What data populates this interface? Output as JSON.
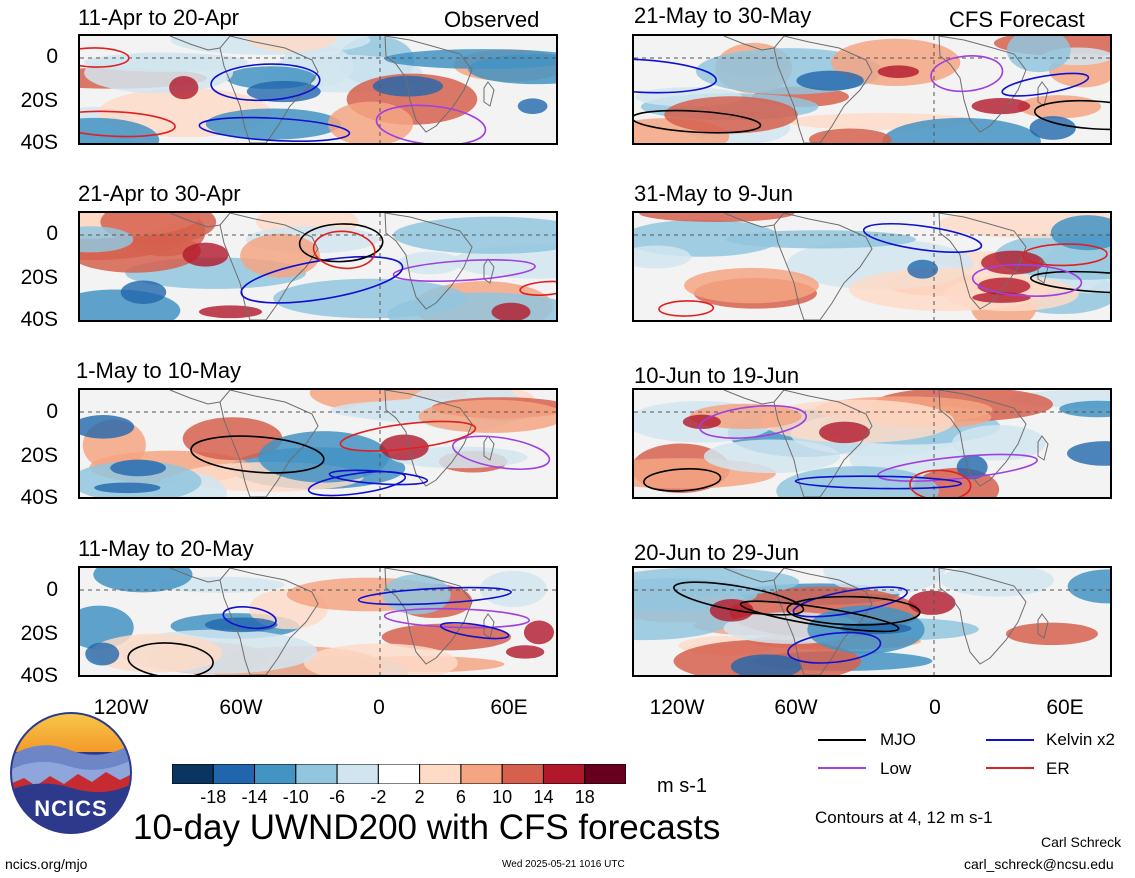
{
  "title": "10-day UWND200 with CFS forecasts",
  "observed_label": "Observed",
  "forecast_label": "CFS Forecast",
  "panels_left": [
    {
      "period": "11-Apr to 20-Apr"
    },
    {
      "period": "21-Apr to 30-Apr"
    },
    {
      "period": "1-May to 10-May"
    },
    {
      "period": "11-May to 20-May"
    }
  ],
  "panels_right": [
    {
      "period": "21-May to 30-May"
    },
    {
      "period": "31-May to 9-Jun"
    },
    {
      "period": "10-Jun to 19-Jun"
    },
    {
      "period": "20-Jun to 29-Jun"
    }
  ],
  "y_ticks": [
    "0",
    "20S",
    "40S"
  ],
  "x_ticks": [
    "120W",
    "60W",
    "0",
    "60E"
  ],
  "colorbar": {
    "labels": [
      "-18",
      "-14",
      "-10",
      "-6",
      "-2",
      "2",
      "6",
      "10",
      "14",
      "18"
    ],
    "units": "m s-1",
    "colors": [
      "#0b3561",
      "#2166ac",
      "#4393c3",
      "#92c5de",
      "#d1e5f0",
      "#ffffff",
      "#fddbc7",
      "#f4a582",
      "#d6604d",
      "#b2182b",
      "#67001f"
    ]
  },
  "legend": [
    {
      "label": "MJO",
      "color": "#000000"
    },
    {
      "label": "Kelvin x2",
      "color": "#1010d0"
    },
    {
      "label": "Low",
      "color": "#a040e0"
    },
    {
      "label": "ER",
      "color": "#e02020"
    }
  ],
  "contours_note": "Contours at 4, 12 m s-1",
  "logo_text": "NCICS",
  "author": "Carl Schreck",
  "email": "carl_schreck@ncsu.edu",
  "site": "ncics.org/mjo",
  "timestamp": "Wed 2025-05-21 1016 UTC"
}
